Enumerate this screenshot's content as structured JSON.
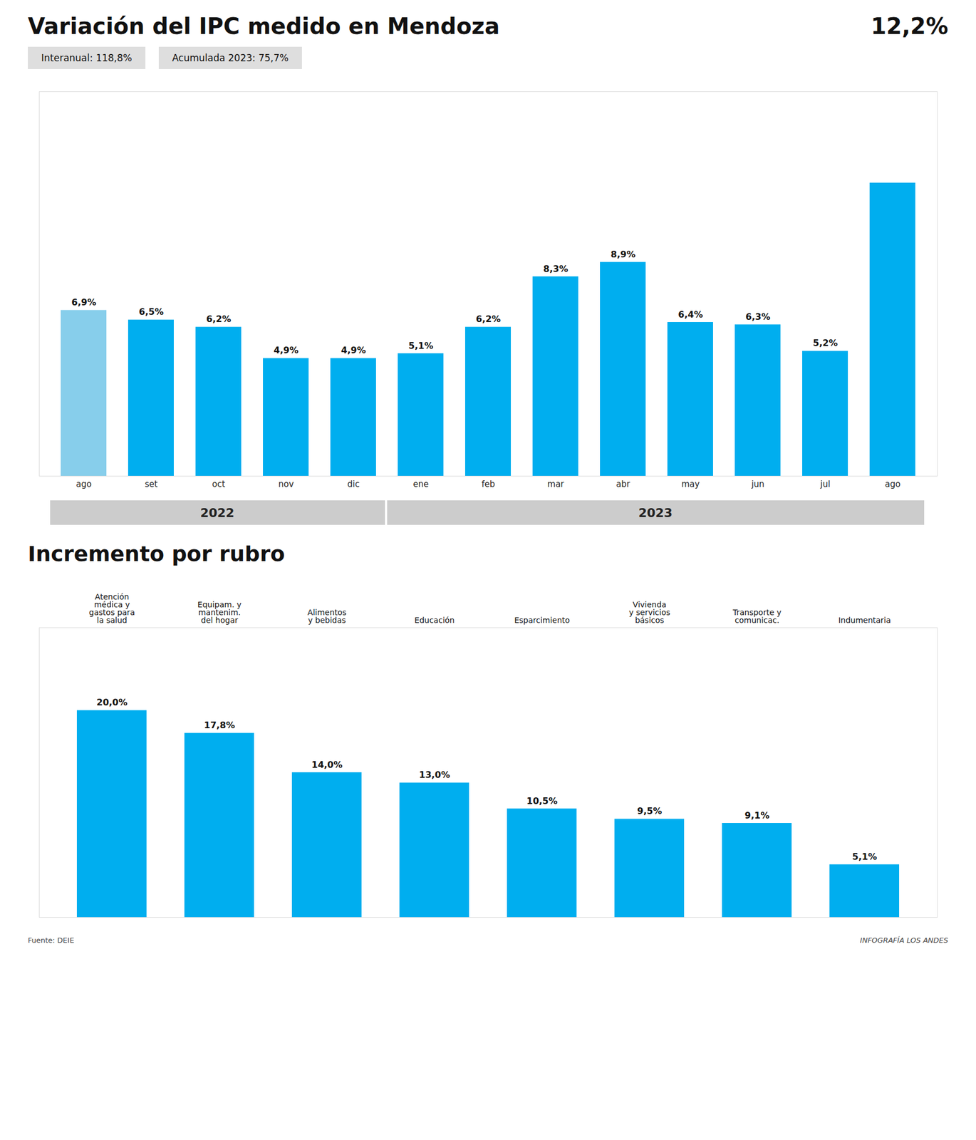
{
  "chart_data": [
    {
      "type": "bar",
      "title": "Variación del IPC medido en Mendoza",
      "subtitle": [
        "Interanual: 118,8%",
        "Acumulada 2023: 75,7%"
      ],
      "annotations": [
        "12,2%"
      ],
      "categories": [
        "ago",
        "set",
        "oct",
        "nov",
        "dic",
        "ene",
        "feb",
        "mar",
        "abr",
        "may",
        "jun",
        "jul",
        "ago"
      ],
      "values": [
        6.9,
        6.5,
        6.2,
        4.9,
        4.9,
        5.1,
        6.2,
        8.3,
        8.9,
        6.4,
        6.3,
        5.2,
        12.2
      ],
      "value_labels": [
        "6,9%",
        "6,5%",
        "6,2%",
        "4,9%",
        "4,9%",
        "5,1%",
        "6,2%",
        "8,3%",
        "8,9%",
        "6,4%",
        "6,3%",
        "5,2%",
        null
      ],
      "colors": [
        "#87CEEB",
        "#00AEEF",
        "#00AEEF",
        "#00AEEF",
        "#00AEEF",
        "#00AEEF",
        "#00AEEF",
        "#00AEEF",
        "#00AEEF",
        "#00AEEF",
        "#00AEEF",
        "#00AEEF",
        "#00AEEF"
      ],
      "groups": [
        {
          "label": "2022",
          "first": 0,
          "last": 4
        },
        {
          "label": "2023",
          "first": 5,
          "last": 12
        }
      ],
      "ylim": [
        0,
        16
      ],
      "data_labels": true,
      "tick_labels": "x",
      "grid": false
    },
    {
      "type": "bar",
      "title": "Incremento por rubro",
      "categories": [
        "Atención\nmédica y\ngastos para\nla salud",
        "Equipam. y\nmantenim.\ndel hogar",
        "Alimentos\ny bebidas",
        "Educación",
        "Esparcimiento",
        "Vivienda\ny servicios\nbásicos",
        "Transporte y\ncomunicac.",
        "Indumentaria"
      ],
      "values": [
        20.0,
        17.8,
        14.0,
        13.0,
        10.5,
        9.5,
        9.1,
        5.1
      ],
      "value_labels": [
        "20,0%",
        "17,8%",
        "14,0%",
        "13,0%",
        "10,5%",
        "9,5%",
        "9,1%",
        "5,1%"
      ],
      "color": "#00AEEF",
      "ylim": [
        0,
        28
      ],
      "data_labels": true,
      "tick_labels": "x",
      "grid": false,
      "source": "Fuente: DEIE",
      "credit": "INFOGRAFÍA LOS ANDES"
    }
  ]
}
